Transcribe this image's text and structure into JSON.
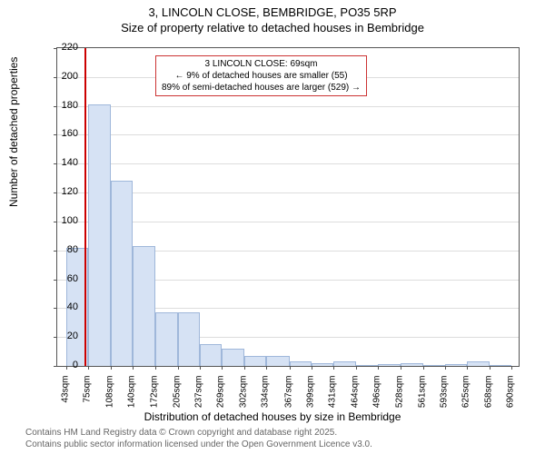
{
  "title": "3, LINCOLN CLOSE, BEMBRIDGE, PO35 5RP",
  "subtitle": "Size of property relative to detached houses in Bembridge",
  "y_axis_label": "Number of detached properties",
  "x_axis_label": "Distribution of detached houses by size in Bembridge",
  "footer_line1": "Contains HM Land Registry data © Crown copyright and database right 2025.",
  "footer_line2": "Contains public sector information licensed under the Open Government Licence v3.0.",
  "chart": {
    "type": "histogram",
    "ylim": [
      0,
      220
    ],
    "y_ticks": [
      0,
      20,
      40,
      60,
      80,
      100,
      120,
      140,
      160,
      180,
      200,
      220
    ],
    "x_tick_labels": [
      "43sqm",
      "75sqm",
      "108sqm",
      "140sqm",
      "172sqm",
      "205sqm",
      "237sqm",
      "269sqm",
      "302sqm",
      "334sqm",
      "367sqm",
      "399sqm",
      "431sqm",
      "464sqm",
      "496sqm",
      "528sqm",
      "561sqm",
      "593sqm",
      "625sqm",
      "658sqm",
      "690sqm"
    ],
    "x_tick_positions": [
      43,
      75,
      108,
      140,
      172,
      205,
      237,
      269,
      302,
      334,
      367,
      399,
      431,
      464,
      496,
      528,
      561,
      593,
      625,
      658,
      690
    ],
    "x_range": [
      30,
      700
    ],
    "bars": [
      {
        "x_start": 43,
        "x_end": 75,
        "value": 82
      },
      {
        "x_start": 75,
        "x_end": 108,
        "value": 181
      },
      {
        "x_start": 108,
        "x_end": 140,
        "value": 128
      },
      {
        "x_start": 140,
        "x_end": 172,
        "value": 83
      },
      {
        "x_start": 172,
        "x_end": 205,
        "value": 37
      },
      {
        "x_start": 205,
        "x_end": 237,
        "value": 37
      },
      {
        "x_start": 237,
        "x_end": 269,
        "value": 15
      },
      {
        "x_start": 269,
        "x_end": 302,
        "value": 12
      },
      {
        "x_start": 302,
        "x_end": 334,
        "value": 7
      },
      {
        "x_start": 334,
        "x_end": 367,
        "value": 7
      },
      {
        "x_start": 367,
        "x_end": 399,
        "value": 3
      },
      {
        "x_start": 399,
        "x_end": 431,
        "value": 2
      },
      {
        "x_start": 431,
        "x_end": 464,
        "value": 3
      },
      {
        "x_start": 464,
        "x_end": 496,
        "value": 0
      },
      {
        "x_start": 496,
        "x_end": 528,
        "value": 1
      },
      {
        "x_start": 528,
        "x_end": 561,
        "value": 2
      },
      {
        "x_start": 561,
        "x_end": 593,
        "value": 0
      },
      {
        "x_start": 593,
        "x_end": 625,
        "value": 1
      },
      {
        "x_start": 625,
        "x_end": 658,
        "value": 3
      },
      {
        "x_start": 658,
        "x_end": 690,
        "value": 0
      }
    ],
    "bar_fill": "#d6e2f4",
    "bar_stroke": "#9fb7da",
    "grid_color": "#dddddd",
    "background_color": "#ffffff",
    "marker": {
      "x": 69,
      "color": "#cc0000"
    },
    "info_box": {
      "line1": "3 LINCOLN CLOSE: 69sqm",
      "line2": "← 9% of detached houses are smaller (55)",
      "line3": "89% of semi-detached houses are larger (529) →",
      "border_color": "#cc3333"
    }
  }
}
